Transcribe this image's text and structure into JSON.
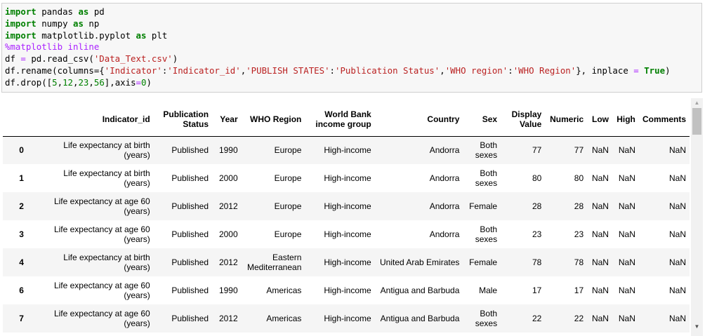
{
  "code_cell": {
    "lines": [
      [
        {
          "t": "import",
          "c": "kw"
        },
        {
          "t": " pandas ",
          "c": ""
        },
        {
          "t": "as",
          "c": "kw"
        },
        {
          "t": " pd",
          "c": ""
        }
      ],
      [
        {
          "t": "import",
          "c": "kw"
        },
        {
          "t": " numpy ",
          "c": ""
        },
        {
          "t": "as",
          "c": "kw"
        },
        {
          "t": " np",
          "c": ""
        }
      ],
      [
        {
          "t": "import",
          "c": "kw"
        },
        {
          "t": " matplotlib.pyplot ",
          "c": ""
        },
        {
          "t": "as",
          "c": "kw"
        },
        {
          "t": " plt",
          "c": ""
        }
      ],
      [
        {
          "t": "%matplotlib inline",
          "c": "magic"
        }
      ],
      [
        {
          "t": "df ",
          "c": ""
        },
        {
          "t": "=",
          "c": "op"
        },
        {
          "t": " pd.read_csv(",
          "c": ""
        },
        {
          "t": "'Data_Text.csv'",
          "c": "str"
        },
        {
          "t": ")",
          "c": ""
        }
      ],
      [
        {
          "t": "df.rename(columns={",
          "c": ""
        },
        {
          "t": "'Indicator'",
          "c": "str"
        },
        {
          "t": ":",
          "c": ""
        },
        {
          "t": "'Indicator_id'",
          "c": "str"
        },
        {
          "t": ",",
          "c": ""
        },
        {
          "t": "'PUBLISH STATES'",
          "c": "str"
        },
        {
          "t": ":",
          "c": ""
        },
        {
          "t": "'Publication Status'",
          "c": "str"
        },
        {
          "t": ",",
          "c": ""
        },
        {
          "t": "'WHO region'",
          "c": "str"
        },
        {
          "t": ":",
          "c": ""
        },
        {
          "t": "'WHO Region'",
          "c": "str"
        },
        {
          "t": "}, inplace ",
          "c": ""
        },
        {
          "t": "=",
          "c": "op"
        },
        {
          "t": " ",
          "c": ""
        },
        {
          "t": "True",
          "c": "kw"
        },
        {
          "t": ")",
          "c": ""
        }
      ],
      [
        {
          "t": "df.drop([",
          "c": ""
        },
        {
          "t": "5",
          "c": "num"
        },
        {
          "t": ",",
          "c": ""
        },
        {
          "t": "12",
          "c": "num"
        },
        {
          "t": ",",
          "c": ""
        },
        {
          "t": "23",
          "c": "num"
        },
        {
          "t": ",",
          "c": ""
        },
        {
          "t": "56",
          "c": "num"
        },
        {
          "t": "],axis",
          "c": ""
        },
        {
          "t": "=",
          "c": "op"
        },
        {
          "t": "0",
          "c": "num"
        },
        {
          "t": ")",
          "c": ""
        }
      ]
    ]
  },
  "table": {
    "columns": [
      {
        "label": "Indicator_id",
        "w": 168
      },
      {
        "label": "Publication Status",
        "w": 84
      },
      {
        "label": "Year",
        "w": 42
      },
      {
        "label": "WHO Region",
        "w": 91
      },
      {
        "label": "World Bank income group",
        "w": 103
      },
      {
        "label": "Country",
        "w": 131
      },
      {
        "label": "Sex",
        "w": 54
      },
      {
        "label": "Display Value",
        "w": 64
      },
      {
        "label": "Numeric",
        "w": 60
      },
      {
        "label": "Low",
        "w": 36
      },
      {
        "label": "High",
        "w": 38
      },
      {
        "label": "Comments",
        "w": 71
      }
    ],
    "index_col_w": 56,
    "rows": [
      {
        "index": "0",
        "cells": [
          "Life expectancy at birth (years)",
          "Published",
          "1990",
          "Europe",
          "High-income",
          "Andorra",
          "Both sexes",
          "77",
          "77",
          "NaN",
          "NaN",
          "NaN"
        ]
      },
      {
        "index": "1",
        "cells": [
          "Life expectancy at birth (years)",
          "Published",
          "2000",
          "Europe",
          "High-income",
          "Andorra",
          "Both sexes",
          "80",
          "80",
          "NaN",
          "NaN",
          "NaN"
        ]
      },
      {
        "index": "2",
        "cells": [
          "Life expectancy at age 60 (years)",
          "Published",
          "2012",
          "Europe",
          "High-income",
          "Andorra",
          "Female",
          "28",
          "28",
          "NaN",
          "NaN",
          "NaN"
        ]
      },
      {
        "index": "3",
        "cells": [
          "Life expectancy at age 60 (years)",
          "Published",
          "2000",
          "Europe",
          "High-income",
          "Andorra",
          "Both sexes",
          "23",
          "23",
          "NaN",
          "NaN",
          "NaN"
        ]
      },
      {
        "index": "4",
        "cells": [
          "Life expectancy at birth (years)",
          "Published",
          "2012",
          "Eastern Mediterranean",
          "High-income",
          "United Arab Emirates",
          "Female",
          "78",
          "78",
          "NaN",
          "NaN",
          "NaN"
        ]
      },
      {
        "index": "6",
        "cells": [
          "Life expectancy at age 60 (years)",
          "Published",
          "1990",
          "Americas",
          "High-income",
          "Antigua and Barbuda",
          "Male",
          "17",
          "17",
          "NaN",
          "NaN",
          "NaN"
        ]
      },
      {
        "index": "7",
        "cells": [
          "Life expectancy at age 60 (years)",
          "Published",
          "2012",
          "Americas",
          "High-income",
          "Antigua and Barbuda",
          "Both sexes",
          "22",
          "22",
          "NaN",
          "NaN",
          "NaN"
        ]
      }
    ]
  },
  "scrollbar": {
    "up_icon": "triangle-up-icon",
    "down_icon": "triangle-down-icon"
  }
}
